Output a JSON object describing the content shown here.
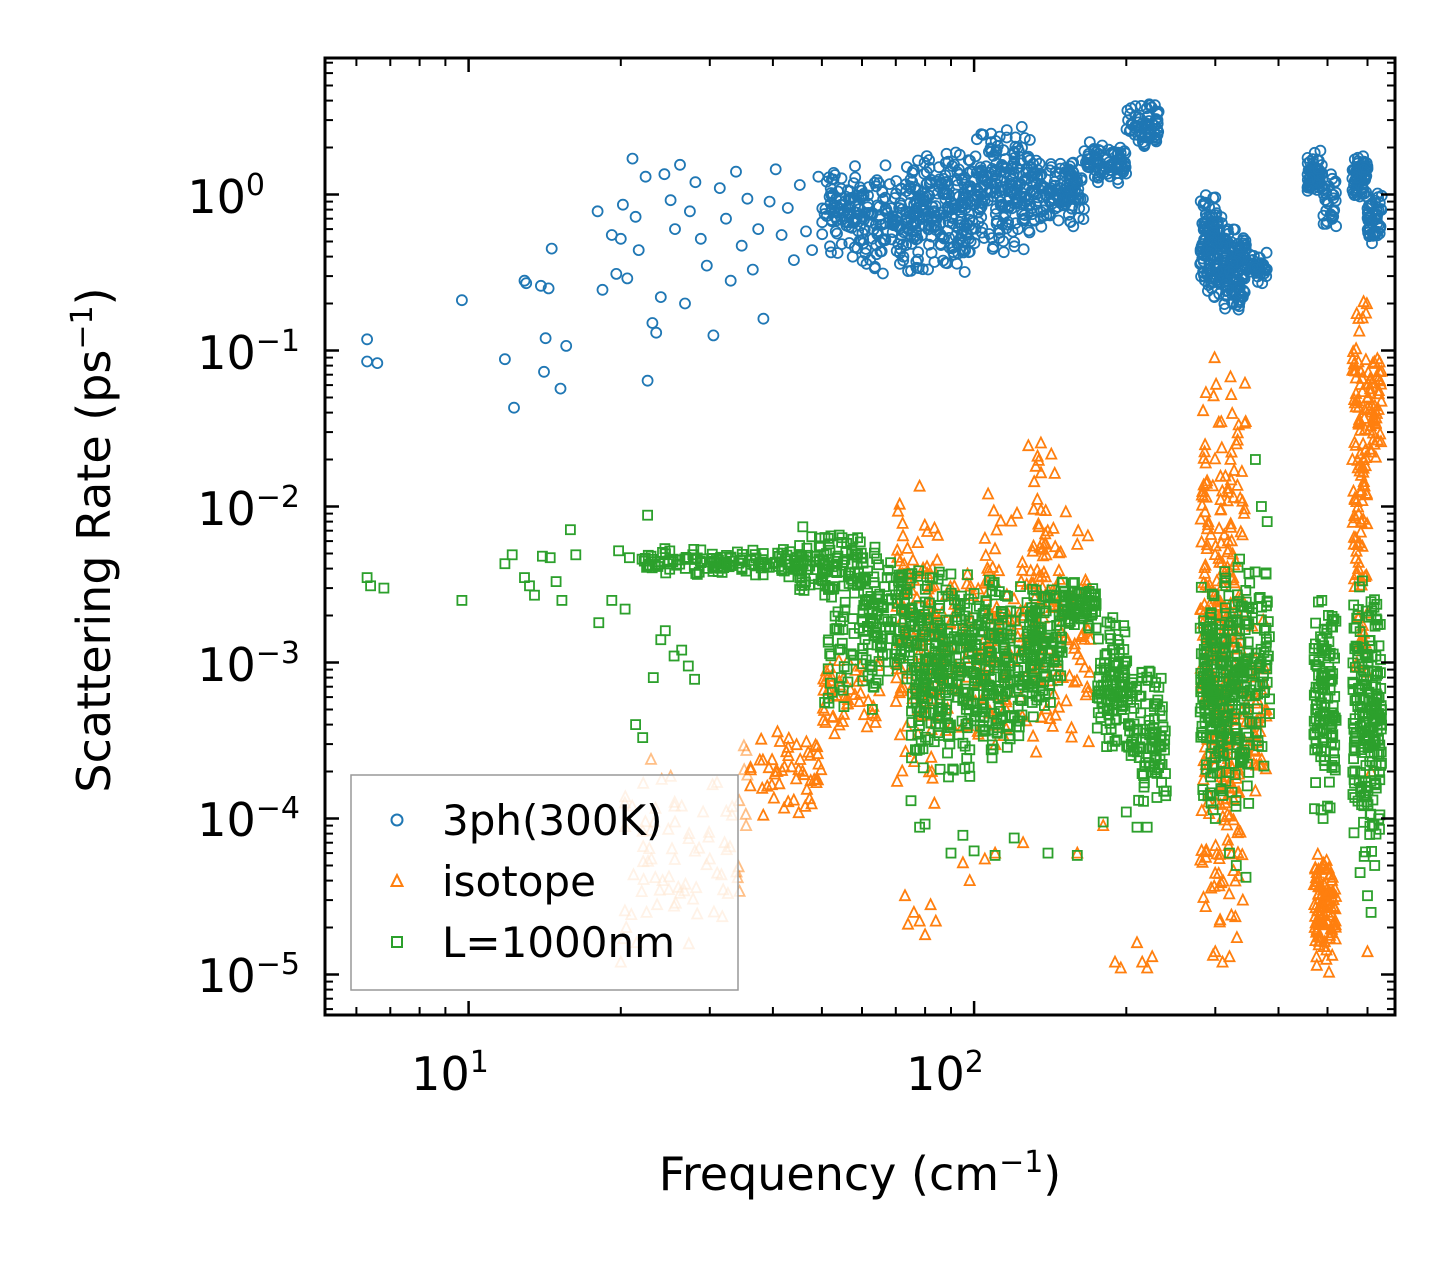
{
  "chart_data": {
    "type": "scatter",
    "title": "",
    "xlabel": "Frequency (cm",
    "xlabel_sup": "−1",
    "xlabel_end": ")",
    "ylabel": "Scattering Rate (ps",
    "ylabel_sup": "−1",
    "ylabel_end": ")",
    "xscale": "log",
    "yscale": "log",
    "xlim": [
      5.2,
      680
    ],
    "ylim": [
      5.5e-06,
      7.5
    ],
    "x_ticks": [
      {
        "value": 10,
        "base": "10",
        "exp": "1"
      },
      {
        "value": 100,
        "base": "10",
        "exp": "2"
      }
    ],
    "y_ticks": [
      {
        "value": 1,
        "base": "10",
        "exp": "0"
      },
      {
        "value": 0.1,
        "base": "10",
        "exp": "−1"
      },
      {
        "value": 0.01,
        "base": "10",
        "exp": "−2"
      },
      {
        "value": 0.001,
        "base": "10",
        "exp": "−3"
      },
      {
        "value": 0.0001,
        "base": "10",
        "exp": "−4"
      },
      {
        "value": 1e-05,
        "base": "10",
        "exp": "−5"
      }
    ],
    "legend_position": "bottom-left",
    "series": [
      {
        "name": "3ph(300K)",
        "color": "#1f77b4",
        "marker": "circle",
        "points": [
          [
            6.3,
            0.118
          ],
          [
            6.3,
            0.085
          ],
          [
            6.6,
            0.083
          ],
          [
            9.7,
            0.21
          ],
          [
            11.8,
            0.088
          ],
          [
            12.3,
            0.043
          ],
          [
            12.9,
            0.28
          ],
          [
            13.0,
            0.27
          ],
          [
            13.9,
            0.26
          ],
          [
            14.2,
            0.12
          ],
          [
            14.1,
            0.073
          ],
          [
            14.6,
            0.45
          ],
          [
            14.4,
            0.25
          ],
          [
            15.2,
            0.057
          ],
          [
            15.6,
            0.107
          ],
          [
            18.0,
            0.78
          ],
          [
            18.4,
            0.245
          ],
          [
            19.2,
            0.55
          ],
          [
            19.6,
            0.31
          ],
          [
            20.0,
            0.52
          ],
          [
            20.2,
            0.86
          ],
          [
            20.6,
            0.29
          ],
          [
            21.1,
            1.7
          ],
          [
            21.4,
            0.72
          ],
          [
            21.7,
            0.44
          ],
          [
            22.4,
            1.3
          ],
          [
            22.6,
            0.064
          ],
          [
            23.1,
            0.15
          ],
          [
            23.5,
            0.13
          ],
          [
            24.0,
            0.22
          ],
          [
            24.4,
            1.35
          ],
          [
            25.1,
            0.92
          ],
          [
            25.6,
            0.6
          ],
          [
            26.2,
            1.55
          ],
          [
            26.8,
            0.2
          ],
          [
            27.4,
            0.78
          ],
          [
            28.1,
            1.2
          ],
          [
            28.8,
            0.52
          ],
          [
            29.6,
            0.35
          ],
          [
            30.5,
            0.125
          ],
          [
            31.4,
            1.1
          ],
          [
            32.3,
            0.7
          ],
          [
            33.0,
            0.28
          ],
          [
            33.8,
            1.4
          ],
          [
            34.7,
            0.47
          ],
          [
            35.6,
            0.94
          ],
          [
            36.5,
            0.33
          ],
          [
            37.4,
            0.6
          ],
          [
            38.3,
            0.16
          ],
          [
            39.4,
            0.9
          ],
          [
            40.5,
            1.45
          ],
          [
            41.6,
            0.55
          ],
          [
            42.8,
            0.82
          ],
          [
            44.0,
            0.38
          ],
          [
            45.2,
            1.15
          ],
          [
            46.5,
            0.58
          ],
          [
            47.8,
            0.44
          ],
          [
            49.2,
            1.3
          ],
          [
            50.6,
            0.75
          ]
        ],
        "clusters": [
          {
            "xmin": 50,
            "xmax": 60,
            "ymin": 0.35,
            "ymax": 1.8,
            "n": 90
          },
          {
            "xmin": 60,
            "xmax": 75,
            "ymin": 0.28,
            "ymax": 1.6,
            "n": 120
          },
          {
            "xmin": 75,
            "xmax": 100,
            "ymin": 0.3,
            "ymax": 2.2,
            "n": 220
          },
          {
            "xmin": 100,
            "xmax": 130,
            "ymin": 0.4,
            "ymax": 3.0,
            "n": 200
          },
          {
            "xmin": 130,
            "xmax": 165,
            "ymin": 0.6,
            "ymax": 1.8,
            "n": 140
          },
          {
            "xmin": 165,
            "xmax": 200,
            "ymin": 1.1,
            "ymax": 2.2,
            "n": 80
          },
          {
            "xmin": 200,
            "xmax": 232,
            "ymin": 1.9,
            "ymax": 3.9,
            "n": 70
          },
          {
            "xmin": 280,
            "xmax": 310,
            "ymin": 0.2,
            "ymax": 1.1,
            "n": 140
          },
          {
            "xmin": 310,
            "xmax": 345,
            "ymin": 0.17,
            "ymax": 0.65,
            "n": 130
          },
          {
            "xmin": 345,
            "xmax": 380,
            "ymin": 0.25,
            "ymax": 0.45,
            "n": 40
          },
          {
            "xmin": 455,
            "xmax": 490,
            "ymin": 0.95,
            "ymax": 2.0,
            "n": 60
          },
          {
            "xmin": 490,
            "xmax": 520,
            "ymin": 0.6,
            "ymax": 1.4,
            "n": 30
          },
          {
            "xmin": 560,
            "xmax": 600,
            "ymin": 0.9,
            "ymax": 1.9,
            "n": 70
          },
          {
            "xmin": 600,
            "xmax": 640,
            "ymin": 0.45,
            "ymax": 1.1,
            "n": 50
          }
        ]
      },
      {
        "name": "isotope",
        "color": "#ff7f0e",
        "marker": "triangle",
        "points": [
          [
            20.0,
            1.2e-05
          ],
          [
            20.5,
            2e-05
          ],
          [
            21.5,
            1.6e-05
          ],
          [
            22.0,
            3.4e-05
          ],
          [
            22.5,
            2.5e-05
          ],
          [
            23.0,
            5.5e-05
          ],
          [
            23.6,
            2.8e-05
          ],
          [
            24.2,
            4e-05
          ],
          [
            24.9,
            3.5e-05
          ],
          [
            25.6,
            9.5e-05
          ],
          [
            26.4,
            0.00012
          ],
          [
            27.3,
            8e-05
          ],
          [
            28.2,
            3.6e-05
          ],
          [
            29.1,
            0.00011
          ],
          [
            30.0,
            5.5e-05
          ],
          [
            31.0,
            0.00017
          ],
          [
            32.1,
            7e-05
          ],
          [
            33.2,
            0.000105
          ],
          [
            34.3,
            0.00013
          ],
          [
            35.4,
            9e-05
          ],
          [
            73,
            3.2e-05
          ],
          [
            74,
            2.1e-05
          ],
          [
            76,
            2.5e-05
          ],
          [
            78,
            2.2e-05
          ],
          [
            80,
            1.8e-05
          ],
          [
            82,
            2.8e-05
          ],
          [
            84,
            2.2e-05
          ],
          [
            95,
            5.2e-05
          ],
          [
            98,
            4e-05
          ],
          [
            105,
            5.5e-05
          ],
          [
            110,
            6e-05
          ],
          [
            125,
            7e-05
          ],
          [
            160,
            6e-05
          ],
          [
            180,
            9e-05
          ],
          [
            190,
            1.2e-05
          ],
          [
            195,
            1.1e-05
          ],
          [
            210,
            1.6e-05
          ],
          [
            215,
            1.2e-05
          ],
          [
            220,
            1.1e-05
          ],
          [
            225,
            1.3e-05
          ],
          [
            300,
            1.4e-05
          ],
          [
            310,
            1.2e-05
          ],
          [
            320,
            1.3e-05
          ],
          [
            340,
            3e-05
          ],
          [
            360,
            0.00015
          ],
          [
            370,
            0.00022
          ],
          [
            560,
            0.02
          ],
          [
            600,
            1.4e-05
          ],
          [
            610,
            0.0002
          ]
        ],
        "clusters": [
          {
            "xmin": 20,
            "xmax": 35,
            "ymin": 1.2e-05,
            "ymax": 0.0003,
            "n": 60
          },
          {
            "xmin": 35,
            "xmax": 50,
            "ymin": 9e-05,
            "ymax": 0.00045,
            "n": 60
          },
          {
            "xmin": 50,
            "xmax": 65,
            "ymin": 0.0003,
            "ymax": 0.0012,
            "n": 50
          },
          {
            "xmin": 70,
            "xmax": 85,
            "ymin": 0.0001,
            "ymax": 0.018,
            "n": 110
          },
          {
            "xmin": 85,
            "xmax": 105,
            "ymin": 0.0002,
            "ymax": 0.006,
            "n": 70
          },
          {
            "xmin": 105,
            "xmax": 125,
            "ymin": 0.0002,
            "ymax": 0.015,
            "n": 70
          },
          {
            "xmin": 125,
            "xmax": 145,
            "ymin": 0.0002,
            "ymax": 0.032,
            "n": 80
          },
          {
            "xmin": 145,
            "xmax": 170,
            "ymin": 0.0002,
            "ymax": 0.01,
            "n": 50
          },
          {
            "xmin": 280,
            "xmax": 310,
            "ymin": 1.2e-05,
            "ymax": 0.12,
            "n": 160
          },
          {
            "xmin": 310,
            "xmax": 345,
            "ymin": 1.1e-05,
            "ymax": 0.15,
            "n": 150
          },
          {
            "xmin": 345,
            "xmax": 380,
            "ymin": 0.0001,
            "ymax": 0.002,
            "n": 40
          },
          {
            "xmin": 470,
            "xmax": 520,
            "ymin": 1e-05,
            "ymax": 7e-05,
            "n": 110
          },
          {
            "xmin": 560,
            "xmax": 600,
            "ymin": 0.0003,
            "ymax": 0.35,
            "n": 110
          },
          {
            "xmin": 600,
            "xmax": 640,
            "ymin": 0.02,
            "ymax": 0.1,
            "n": 50
          }
        ]
      },
      {
        "name": "L=1000nm",
        "color": "#2ca02c",
        "marker": "square",
        "points": [
          [
            6.3,
            0.0035
          ],
          [
            6.4,
            0.0031
          ],
          [
            6.8,
            0.003
          ],
          [
            9.7,
            0.0025
          ],
          [
            11.8,
            0.0043
          ],
          [
            12.2,
            0.0049
          ],
          [
            12.9,
            0.0035
          ],
          [
            13.2,
            0.0031
          ],
          [
            13.5,
            0.0027
          ],
          [
            14.0,
            0.0048
          ],
          [
            14.5,
            0.0047
          ],
          [
            14.9,
            0.0033
          ],
          [
            15.3,
            0.0025
          ],
          [
            15.9,
            0.0071
          ],
          [
            16.3,
            0.0049
          ],
          [
            18.1,
            0.0018
          ],
          [
            19.2,
            0.0025
          ],
          [
            19.8,
            0.0052
          ],
          [
            20.4,
            0.0022
          ],
          [
            20.8,
            0.0047
          ],
          [
            21.4,
            0.0004
          ],
          [
            22.1,
            0.00033
          ],
          [
            22.6,
            0.0088
          ],
          [
            23.2,
            0.0008
          ],
          [
            24.0,
            0.0014
          ],
          [
            24.5,
            0.0016
          ],
          [
            25.5,
            0.0011
          ],
          [
            26.4,
            0.0012
          ],
          [
            27.2,
            0.00095
          ],
          [
            28.0,
            0.00078
          ],
          [
            75,
            0.00013
          ],
          [
            78,
            8.8e-05
          ],
          [
            80,
            9.2e-05
          ],
          [
            90,
            6e-05
          ],
          [
            95,
            7.8e-05
          ],
          [
            100,
            6.2e-05
          ],
          [
            110,
            5.8e-05
          ],
          [
            120,
            7.5e-05
          ],
          [
            140,
            6e-05
          ],
          [
            160,
            5.8e-05
          ],
          [
            180,
            9.5e-05
          ],
          [
            200,
            0.00011
          ],
          [
            210,
            8.8e-05
          ],
          [
            220,
            8.8e-05
          ],
          [
            240,
            0.00015
          ],
          [
            300,
            0.0001
          ],
          [
            320,
            6e-05
          ],
          [
            330,
            5e-05
          ],
          [
            345,
            4.2e-05
          ],
          [
            360,
            0.02
          ],
          [
            370,
            0.01
          ],
          [
            380,
            0.008
          ],
          [
            490,
            0.0001
          ],
          [
            500,
            0.00012
          ],
          [
            580,
            4.5e-05
          ],
          [
            600,
            3.2e-05
          ],
          [
            610,
            2.5e-05
          ],
          [
            620,
            5e-05
          ]
        ],
        "clusters": [
          {
            "xmin": 22,
            "xmax": 45,
            "ymin": 0.0035,
            "ymax": 0.0055,
            "n": 130
          },
          {
            "xmin": 45,
            "xmax": 60,
            "ymin": 0.0025,
            "ymax": 0.0075,
            "n": 110
          },
          {
            "xmin": 50,
            "xmax": 65,
            "ymin": 0.0004,
            "ymax": 0.003,
            "n": 50
          },
          {
            "xmin": 60,
            "xmax": 75,
            "ymin": 0.0006,
            "ymax": 0.006,
            "n": 130
          },
          {
            "xmin": 75,
            "xmax": 100,
            "ymin": 0.00015,
            "ymax": 0.005,
            "n": 260
          },
          {
            "xmin": 100,
            "xmax": 125,
            "ymin": 0.0002,
            "ymax": 0.004,
            "n": 180
          },
          {
            "xmin": 125,
            "xmax": 150,
            "ymin": 0.0004,
            "ymax": 0.004,
            "n": 130
          },
          {
            "xmin": 150,
            "xmax": 175,
            "ymin": 0.0015,
            "ymax": 0.0035,
            "n": 70
          },
          {
            "xmin": 175,
            "xmax": 200,
            "ymin": 0.00025,
            "ymax": 0.0025,
            "n": 100
          },
          {
            "xmin": 200,
            "xmax": 240,
            "ymin": 0.00012,
            "ymax": 0.0012,
            "n": 110
          },
          {
            "xmin": 280,
            "xmax": 310,
            "ymin": 0.0001,
            "ymax": 0.004,
            "n": 150
          },
          {
            "xmin": 310,
            "xmax": 350,
            "ymin": 0.0001,
            "ymax": 0.005,
            "n": 160
          },
          {
            "xmin": 350,
            "xmax": 385,
            "ymin": 0.0002,
            "ymax": 0.005,
            "n": 60
          },
          {
            "xmin": 470,
            "xmax": 520,
            "ymin": 0.0001,
            "ymax": 0.003,
            "n": 120
          },
          {
            "xmin": 560,
            "xmax": 640,
            "ymin": 5e-05,
            "ymax": 0.0045,
            "n": 200
          }
        ]
      }
    ]
  }
}
